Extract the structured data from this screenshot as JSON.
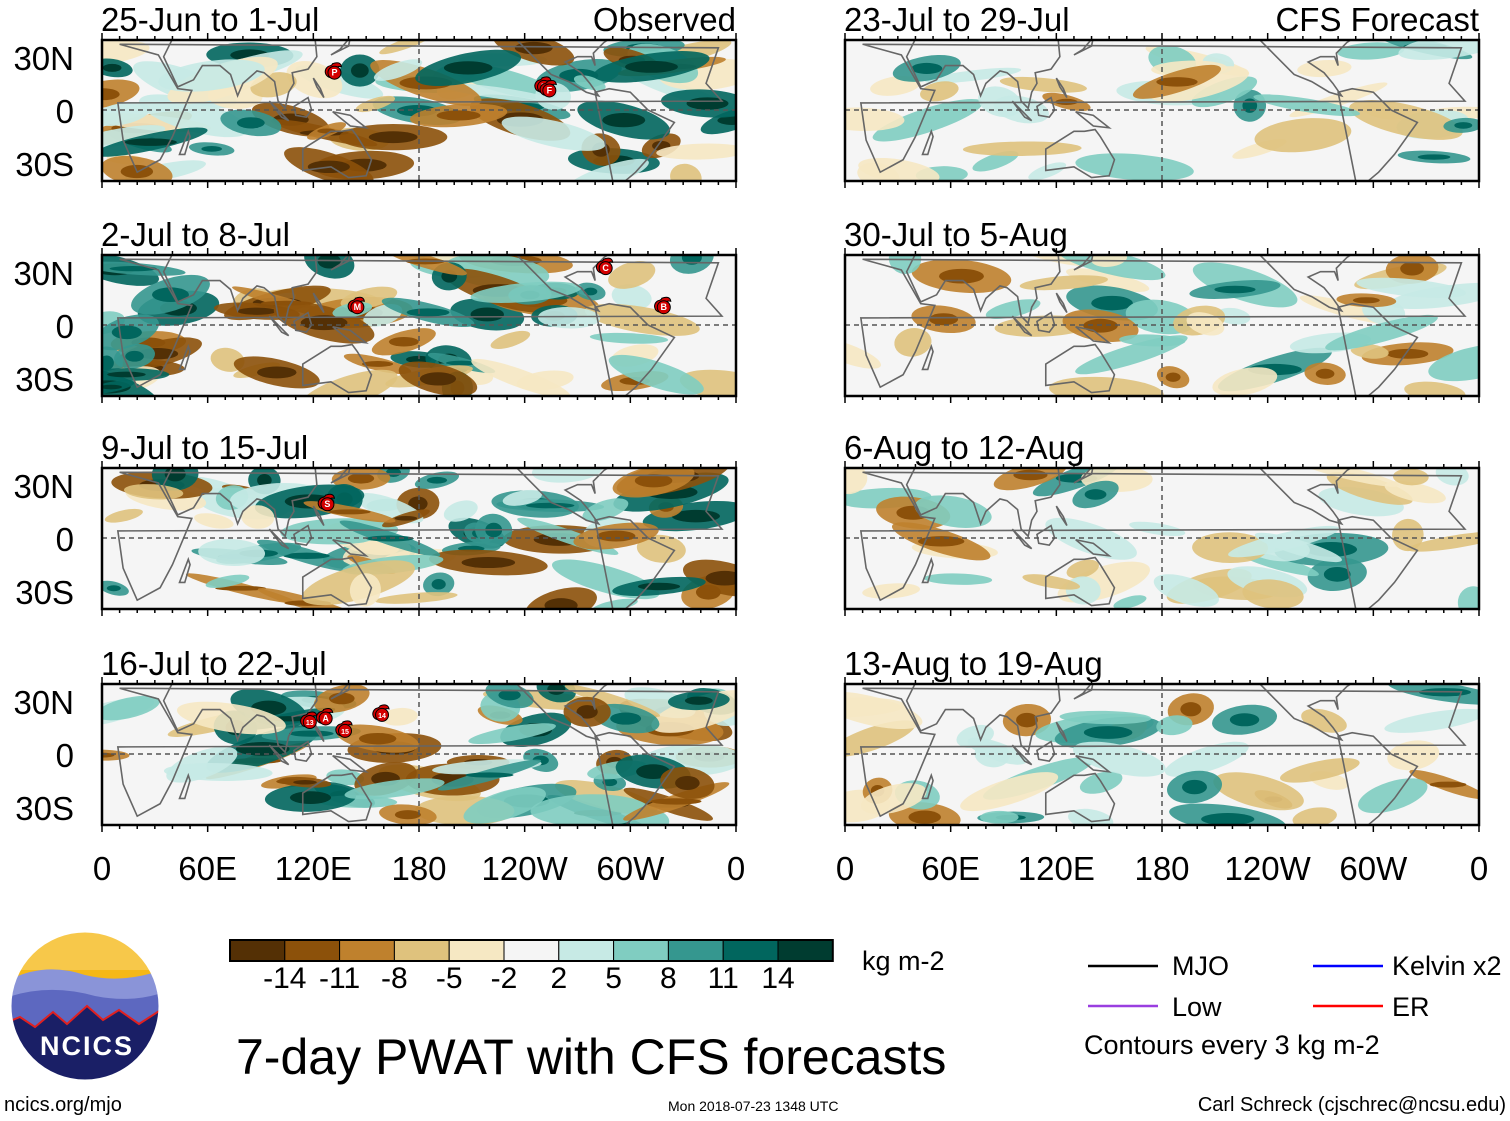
{
  "panels": [
    {
      "title": "25-Jun to 1-Jul",
      "label": "Observed",
      "kind": "observed",
      "storms": [
        {
          "id": "P",
          "lon": 132,
          "lat": 21
        },
        {
          "id": "E",
          "lon": 251,
          "lat": 13
        },
        {
          "id": "F",
          "lon": 254,
          "lat": 11
        }
      ]
    },
    {
      "title": "2-Jul to 8-Jul",
      "label": "",
      "kind": "observed",
      "storms": [
        {
          "id": "C",
          "lon": 286,
          "lat": 32
        },
        {
          "id": "M",
          "lon": 145,
          "lat": 10
        },
        {
          "id": "B",
          "lon": 319,
          "lat": 10
        }
      ]
    },
    {
      "title": "9-Jul to 15-Jul",
      "label": "",
      "kind": "observed",
      "storms": [
        {
          "id": "S",
          "lon": 128,
          "lat": 19
        }
      ]
    },
    {
      "title": "16-Jul to 22-Jul",
      "label": "",
      "kind": "observed",
      "storms": [
        {
          "id": "13",
          "lon": 118,
          "lat": 18
        },
        {
          "id": "A",
          "lon": 127,
          "lat": 20
        },
        {
          "id": "15",
          "lon": 138,
          "lat": 13
        },
        {
          "id": "14",
          "lon": 159,
          "lat": 22
        }
      ]
    },
    {
      "title": "23-Jul to 29-Jul",
      "label": "CFS Forecast",
      "kind": "forecast",
      "storms": []
    },
    {
      "title": "30-Jul to 5-Aug",
      "label": "",
      "kind": "forecast",
      "storms": []
    },
    {
      "title": "6-Aug to 12-Aug",
      "label": "",
      "kind": "forecast",
      "storms": []
    },
    {
      "title": "13-Aug to 19-Aug",
      "label": "",
      "kind": "forecast",
      "storms": []
    }
  ],
  "lat_labels": [
    "30N",
    "0",
    "30S"
  ],
  "lon_labels": [
    "0",
    "60E",
    "120E",
    "180",
    "120W",
    "60W",
    "0"
  ],
  "colorbar": {
    "colors": [
      "#543005",
      "#8c510a",
      "#bf812d",
      "#dfc27d",
      "#f6e8c3",
      "#f5f5f5",
      "#c7eae5",
      "#80cdc1",
      "#35978f",
      "#01665e",
      "#003c30"
    ],
    "ticks": [
      "-14",
      "-11",
      "-8",
      "-5",
      "-2",
      "2",
      "5",
      "8",
      "11",
      "14"
    ],
    "units": "kg m-2"
  },
  "title": "7-day PWAT with CFS forecasts",
  "legend": {
    "items": [
      {
        "label": "MJO",
        "color": "#000000"
      },
      {
        "label": "Kelvin x2",
        "color": "#0000ff"
      },
      {
        "label": "Low",
        "color": "#9a3ee0"
      },
      {
        "label": "ER",
        "color": "#ff0000"
      }
    ],
    "note": "Contours every 3 kg m-2"
  },
  "logo": {
    "text": "NCICS"
  },
  "footer": {
    "left": "ncics.org/mjo",
    "center": "Mon 2018-07-23 1348 UTC",
    "right": "Carl Schreck (cjschrec@ncsu.edu)"
  }
}
